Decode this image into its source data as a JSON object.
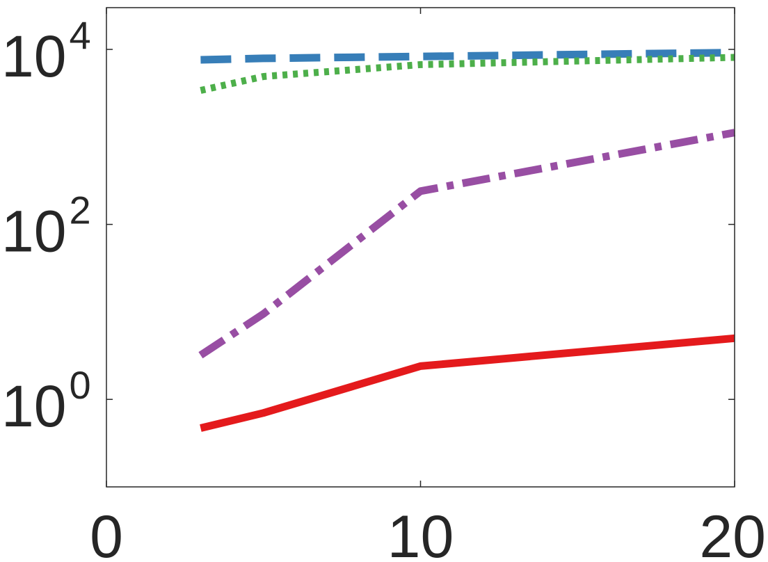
{
  "chart_data": {
    "type": "line",
    "title": "",
    "xlabel": "",
    "ylabel": "",
    "yscale": "log",
    "xlim": [
      0,
      20
    ],
    "ylim": [
      0.1,
      30000
    ],
    "grid": false,
    "x_ticks": [
      {
        "value": 0,
        "label": "0"
      },
      {
        "value": 10,
        "label": "10"
      },
      {
        "value": 20,
        "label": "20"
      }
    ],
    "y_ticks": [
      {
        "value": 1,
        "base": "10",
        "exp": "0"
      },
      {
        "value": 100,
        "base": "10",
        "exp": "2"
      },
      {
        "value": 10000,
        "base": "10",
        "exp": "4"
      }
    ],
    "series": [
      {
        "color": "#377eb8",
        "style": "dashed",
        "x": [
          3,
          5,
          10,
          20
        ],
        "y": [
          7600,
          7900,
          8300,
          9200
        ]
      },
      {
        "color": "#4daf4a",
        "style": "dotted",
        "x": [
          3,
          5,
          10,
          20
        ],
        "y": [
          3400,
          4900,
          6700,
          8100
        ]
      },
      {
        "color": "#984ea3",
        "style": "dashdot",
        "x": [
          3,
          5,
          10,
          20
        ],
        "y": [
          3.2,
          9.5,
          240,
          1120
        ]
      },
      {
        "color": "#e41a1c",
        "style": "solid",
        "x": [
          3,
          5,
          10,
          20
        ],
        "y": [
          0.47,
          0.7,
          2.4,
          5.0
        ]
      }
    ]
  }
}
